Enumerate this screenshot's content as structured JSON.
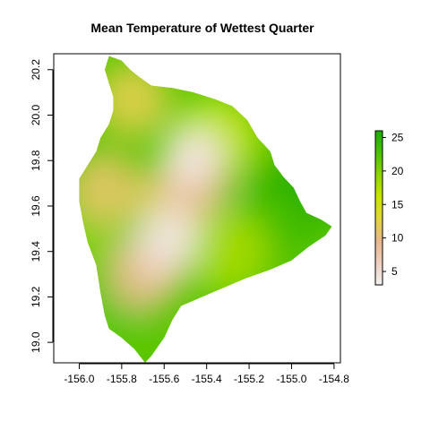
{
  "chart_data": {
    "type": "heatmap",
    "title": "Mean Temperature of Wettest Quarter",
    "xlabel": "",
    "ylabel": "",
    "xlim": [
      -156.12,
      -154.77
    ],
    "ylim": [
      18.91,
      20.27
    ],
    "x_ticks": [
      "-156.0",
      "-155.8",
      "-155.6",
      "-155.4",
      "-155.2",
      "-155.0",
      "-154.8"
    ],
    "x_tick_values": [
      -156.0,
      -155.8,
      -155.6,
      -155.4,
      -155.2,
      -155.0,
      -154.8
    ],
    "y_ticks": [
      "19.0",
      "19.2",
      "19.4",
      "19.6",
      "19.8",
      "20.0",
      "20.2"
    ],
    "y_tick_values": [
      19.0,
      19.2,
      19.4,
      19.6,
      19.8,
      20.0,
      20.2
    ],
    "legend": {
      "placement": "right",
      "range": [
        3,
        26
      ],
      "ticks": [
        "5",
        "10",
        "15",
        "20",
        "25"
      ],
      "tick_values": [
        5,
        10,
        15,
        20,
        25
      ],
      "colors": [
        "#f2f2f2",
        "#eecfbf",
        "#e8b78e",
        "#e2d73a",
        "#c8e600",
        "#8fd500",
        "#4cc200",
        "#1aaa00"
      ]
    },
    "grid": false,
    "region_outline_lonlat": [
      [
        -155.86,
        20.26
      ],
      [
        -155.8,
        20.24
      ],
      [
        -155.76,
        20.2
      ],
      [
        -155.72,
        20.17
      ],
      [
        -155.66,
        20.13
      ],
      [
        -155.56,
        20.12
      ],
      [
        -155.46,
        20.1
      ],
      [
        -155.36,
        20.07
      ],
      [
        -155.28,
        20.04
      ],
      [
        -155.21,
        19.98
      ],
      [
        -155.16,
        19.9
      ],
      [
        -155.1,
        19.84
      ],
      [
        -155.08,
        19.78
      ],
      [
        -155.04,
        19.73
      ],
      [
        -154.99,
        19.68
      ],
      [
        -154.96,
        19.62
      ],
      [
        -154.93,
        19.57
      ],
      [
        -154.86,
        19.54
      ],
      [
        -154.81,
        19.51
      ],
      [
        -154.84,
        19.47
      ],
      [
        -154.92,
        19.42
      ],
      [
        -155.0,
        19.36
      ],
      [
        -155.1,
        19.32
      ],
      [
        -155.22,
        19.28
      ],
      [
        -155.32,
        19.24
      ],
      [
        -155.42,
        19.2
      ],
      [
        -155.52,
        19.16
      ],
      [
        -155.56,
        19.1
      ],
      [
        -155.6,
        19.02
      ],
      [
        -155.66,
        18.94
      ],
      [
        -155.69,
        18.91
      ],
      [
        -155.74,
        18.97
      ],
      [
        -155.8,
        19.02
      ],
      [
        -155.86,
        19.06
      ],
      [
        -155.88,
        19.12
      ],
      [
        -155.9,
        19.22
      ],
      [
        -155.92,
        19.34
      ],
      [
        -155.96,
        19.44
      ],
      [
        -155.98,
        19.52
      ],
      [
        -156.0,
        19.62
      ],
      [
        -156.0,
        19.72
      ],
      [
        -155.96,
        19.78
      ],
      [
        -155.92,
        19.84
      ],
      [
        -155.9,
        19.9
      ],
      [
        -155.86,
        19.96
      ],
      [
        -155.84,
        20.02
      ],
      [
        -155.84,
        20.08
      ],
      [
        -155.86,
        20.14
      ],
      [
        -155.88,
        20.2
      ]
    ],
    "value_field": [
      {
        "lon": -155.47,
        "lat": 19.82,
        "value": 4
      },
      {
        "lon": -155.58,
        "lat": 19.47,
        "value": 4
      },
      {
        "lon": -155.62,
        "lat": 19.36,
        "value": 7
      },
      {
        "lon": -155.46,
        "lat": 19.72,
        "value": 9
      },
      {
        "lon": -155.7,
        "lat": 19.3,
        "value": 10
      },
      {
        "lon": -155.55,
        "lat": 19.62,
        "value": 12
      },
      {
        "lon": -155.88,
        "lat": 19.68,
        "value": 11
      },
      {
        "lon": -155.75,
        "lat": 20.07,
        "value": 12
      },
      {
        "lon": -155.36,
        "lat": 19.9,
        "value": 16
      },
      {
        "lon": -155.3,
        "lat": 19.4,
        "value": 18
      },
      {
        "lon": -155.92,
        "lat": 19.5,
        "value": 20
      },
      {
        "lon": -155.1,
        "lat": 19.5,
        "value": 23
      },
      {
        "lon": -155.2,
        "lat": 19.95,
        "value": 22
      },
      {
        "lon": -155.85,
        "lat": 19.1,
        "value": 22
      },
      {
        "lon": -155.0,
        "lat": 19.62,
        "value": 26
      }
    ]
  }
}
